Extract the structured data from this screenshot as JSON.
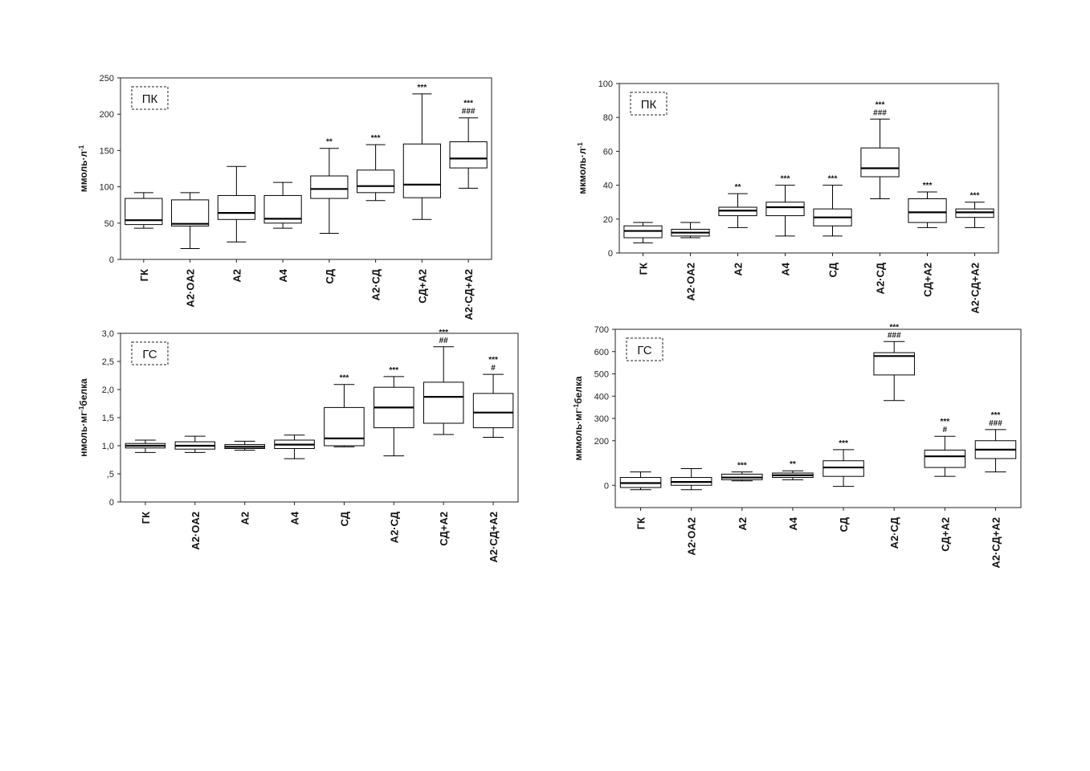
{
  "chart_data": [
    {
      "type": "box",
      "panel_label": "ПК",
      "ylabel": "ммоль·л",
      "ylabel_sup": "-1",
      "ylim": [
        0,
        250
      ],
      "yticks": [
        0,
        50,
        100,
        150,
        200,
        250
      ],
      "ytick_labels": [
        "0",
        "50",
        "100",
        "150",
        "200",
        "250"
      ],
      "categories": [
        "ГК",
        "A2·OA2",
        "A2",
        "A4",
        "СД",
        "A2·СД",
        "СД+A2",
        "A2·СД+A2"
      ],
      "boxes": [
        {
          "min": 43,
          "q1": 48,
          "median": 54,
          "q3": 84,
          "max": 92,
          "marks": []
        },
        {
          "min": 15,
          "q1": 46,
          "median": 49,
          "q3": 82,
          "max": 92,
          "marks": []
        },
        {
          "min": 24,
          "q1": 55,
          "median": 64,
          "q3": 88,
          "max": 128,
          "marks": []
        },
        {
          "min": 43,
          "q1": 50,
          "median": 56,
          "q3": 88,
          "max": 106,
          "marks": []
        },
        {
          "min": 36,
          "q1": 84,
          "median": 97,
          "q3": 115,
          "max": 153,
          "marks": [
            "**"
          ]
        },
        {
          "min": 81,
          "q1": 92,
          "median": 101,
          "q3": 123,
          "max": 158,
          "marks": [
            "***"
          ]
        },
        {
          "min": 55,
          "q1": 85,
          "median": 103,
          "q3": 159,
          "max": 228,
          "marks": [
            "***"
          ]
        },
        {
          "min": 98,
          "q1": 126,
          "median": 139,
          "q3": 162,
          "max": 195,
          "marks": [
            "***",
            "###"
          ]
        }
      ]
    },
    {
      "type": "box",
      "panel_label": "ПК",
      "ylabel": "мкмоль·л",
      "ylabel_sup": "-1",
      "ylim": [
        0,
        100
      ],
      "yticks": [
        0,
        20,
        40,
        60,
        80,
        100
      ],
      "ytick_labels": [
        "0",
        "20",
        "40",
        "60",
        "80",
        "100"
      ],
      "categories": [
        "ГК",
        "A2·OA2",
        "A2",
        "A4",
        "СД",
        "A2·СД",
        "СД+A2",
        "A2·СД+A2"
      ],
      "boxes": [
        {
          "min": 6,
          "q1": 9,
          "median": 13,
          "q3": 16,
          "max": 18,
          "marks": []
        },
        {
          "min": 9,
          "q1": 10,
          "median": 12,
          "q3": 14,
          "max": 18,
          "marks": []
        },
        {
          "min": 15,
          "q1": 22,
          "median": 25,
          "q3": 27,
          "max": 35,
          "marks": [
            "**"
          ]
        },
        {
          "min": 10,
          "q1": 22,
          "median": 27,
          "q3": 30,
          "max": 40,
          "marks": [
            "***"
          ]
        },
        {
          "min": 10,
          "q1": 16,
          "median": 21,
          "q3": 26,
          "max": 40,
          "marks": [
            "***"
          ]
        },
        {
          "min": 32,
          "q1": 45,
          "median": 50,
          "q3": 62,
          "max": 79,
          "marks": [
            "***",
            "###"
          ]
        },
        {
          "min": 15,
          "q1": 18,
          "median": 24,
          "q3": 32,
          "max": 36,
          "marks": [
            "***"
          ]
        },
        {
          "min": 15,
          "q1": 21,
          "median": 24,
          "q3": 26,
          "max": 30,
          "marks": [
            "***"
          ]
        }
      ]
    },
    {
      "type": "box",
      "panel_label": "ГС",
      "ylabel": "нмоль·мг",
      "ylabel_sup": "-1",
      "ylabel_suffix": "белка",
      "ylim": [
        0,
        3.0
      ],
      "yticks": [
        0,
        0.5,
        1.0,
        1.5,
        2.0,
        2.5,
        3.0
      ],
      "ytick_labels": [
        "0",
        ",5",
        "1,0",
        "1,5",
        "2,0",
        "2,5",
        "3,0"
      ],
      "categories": [
        "ГК",
        "A2·OA2",
        "A2",
        "A4",
        "СД",
        "A2·СД",
        "СД+A2",
        "A2·СД+A2"
      ],
      "boxes": [
        {
          "min": 0.88,
          "q1": 0.96,
          "median": 1.0,
          "q3": 1.04,
          "max": 1.1,
          "marks": []
        },
        {
          "min": 0.88,
          "q1": 0.94,
          "median": 1.0,
          "q3": 1.07,
          "max": 1.17,
          "marks": []
        },
        {
          "min": 0.92,
          "q1": 0.95,
          "median": 0.98,
          "q3": 1.02,
          "max": 1.08,
          "marks": []
        },
        {
          "min": 0.77,
          "q1": 0.95,
          "median": 1.02,
          "q3": 1.1,
          "max": 1.19,
          "marks": []
        },
        {
          "min": 0.98,
          "q1": 1.0,
          "median": 1.13,
          "q3": 1.68,
          "max": 2.09,
          "marks": [
            "***"
          ]
        },
        {
          "min": 0.82,
          "q1": 1.32,
          "median": 1.68,
          "q3": 2.04,
          "max": 2.23,
          "marks": [
            "***"
          ]
        },
        {
          "min": 1.2,
          "q1": 1.4,
          "median": 1.87,
          "q3": 2.13,
          "max": 2.76,
          "marks": [
            "***",
            "##"
          ]
        },
        {
          "min": 1.15,
          "q1": 1.32,
          "median": 1.59,
          "q3": 1.93,
          "max": 2.27,
          "marks": [
            "***",
            "#"
          ]
        }
      ]
    },
    {
      "type": "box",
      "panel_label": "ГС",
      "ylabel": "мкмоль·мг",
      "ylabel_sup": "-1",
      "ylabel_suffix": "белка",
      "ylim": [
        -100,
        700
      ],
      "yticks": [
        0,
        200,
        300,
        400,
        500,
        600,
        700
      ],
      "ytick_labels": [
        "0",
        "200",
        "300",
        "400",
        "500",
        "600",
        "700"
      ],
      "categories": [
        "ГК",
        "A2·OA2",
        "A2",
        "A4",
        "СД",
        "A2·СД",
        "СД+A2",
        "A2·СД+A2"
      ],
      "boxes": [
        {
          "min": -20,
          "q1": -10,
          "median": 10,
          "q3": 35,
          "max": 60,
          "marks": []
        },
        {
          "min": -20,
          "q1": 0,
          "median": 15,
          "q3": 35,
          "max": 75,
          "marks": []
        },
        {
          "min": 20,
          "q1": 25,
          "median": 35,
          "q3": 50,
          "max": 60,
          "marks": [
            "***"
          ]
        },
        {
          "min": 25,
          "q1": 35,
          "median": 45,
          "q3": 55,
          "max": 65,
          "marks": [
            "**"
          ]
        },
        {
          "min": -5,
          "q1": 40,
          "median": 80,
          "q3": 110,
          "max": 160,
          "marks": [
            "***"
          ]
        },
        {
          "min": 380,
          "q1": 495,
          "median": 580,
          "q3": 595,
          "max": 645,
          "marks": [
            "***",
            "###"
          ]
        },
        {
          "min": 40,
          "q1": 80,
          "median": 130,
          "q3": 158,
          "max": 220,
          "marks": [
            "***",
            "#"
          ]
        },
        {
          "min": 60,
          "q1": 120,
          "median": 160,
          "q3": 200,
          "max": 250,
          "marks": [
            "***",
            "###"
          ]
        }
      ]
    }
  ]
}
